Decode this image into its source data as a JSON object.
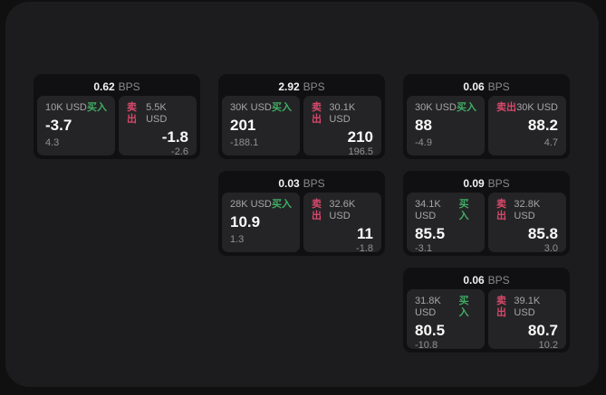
{
  "labels": {
    "buy": "买入",
    "sell": "卖出",
    "bps_suffix": "BPS"
  },
  "colors": {
    "buy_green": "#3fae63",
    "sell_red": "#d8486b",
    "panel_bg": "#1c1c1e",
    "card_bg": "#101012",
    "tile_bg": "#242426"
  },
  "cards": [
    {
      "bps": "0.62",
      "buy": {
        "amount": "10K USD",
        "price": "-3.7",
        "delta": "4.3"
      },
      "sell": {
        "amount": "5.5K USD",
        "price": "-1.8",
        "delta": "-2.6"
      }
    },
    {
      "bps": "2.92",
      "buy": {
        "amount": "30K USD",
        "price": "201",
        "delta": "-188.1"
      },
      "sell": {
        "amount": "30.1K USD",
        "price": "210",
        "delta": "196.5"
      }
    },
    {
      "bps": "0.06",
      "buy": {
        "amount": "30K USD",
        "price": "88",
        "delta": "-4.9"
      },
      "sell": {
        "amount": "30K USD",
        "price": "88.2",
        "delta": "4.7"
      }
    },
    {
      "bps": "0.03",
      "buy": {
        "amount": "28K USD",
        "price": "10.9",
        "delta": "1.3"
      },
      "sell": {
        "amount": "32.6K USD",
        "price": "11",
        "delta": "-1.8"
      }
    },
    {
      "bps": "0.09",
      "buy": {
        "amount": "34.1K USD",
        "price": "85.5",
        "delta": "-3.1"
      },
      "sell": {
        "amount": "32.8K USD",
        "price": "85.8",
        "delta": "3.0"
      }
    },
    {
      "bps": "0.06",
      "buy": {
        "amount": "31.8K USD",
        "price": "80.5",
        "delta": "-10.8"
      },
      "sell": {
        "amount": "39.1K USD",
        "price": "80.7",
        "delta": "10.2"
      }
    }
  ]
}
